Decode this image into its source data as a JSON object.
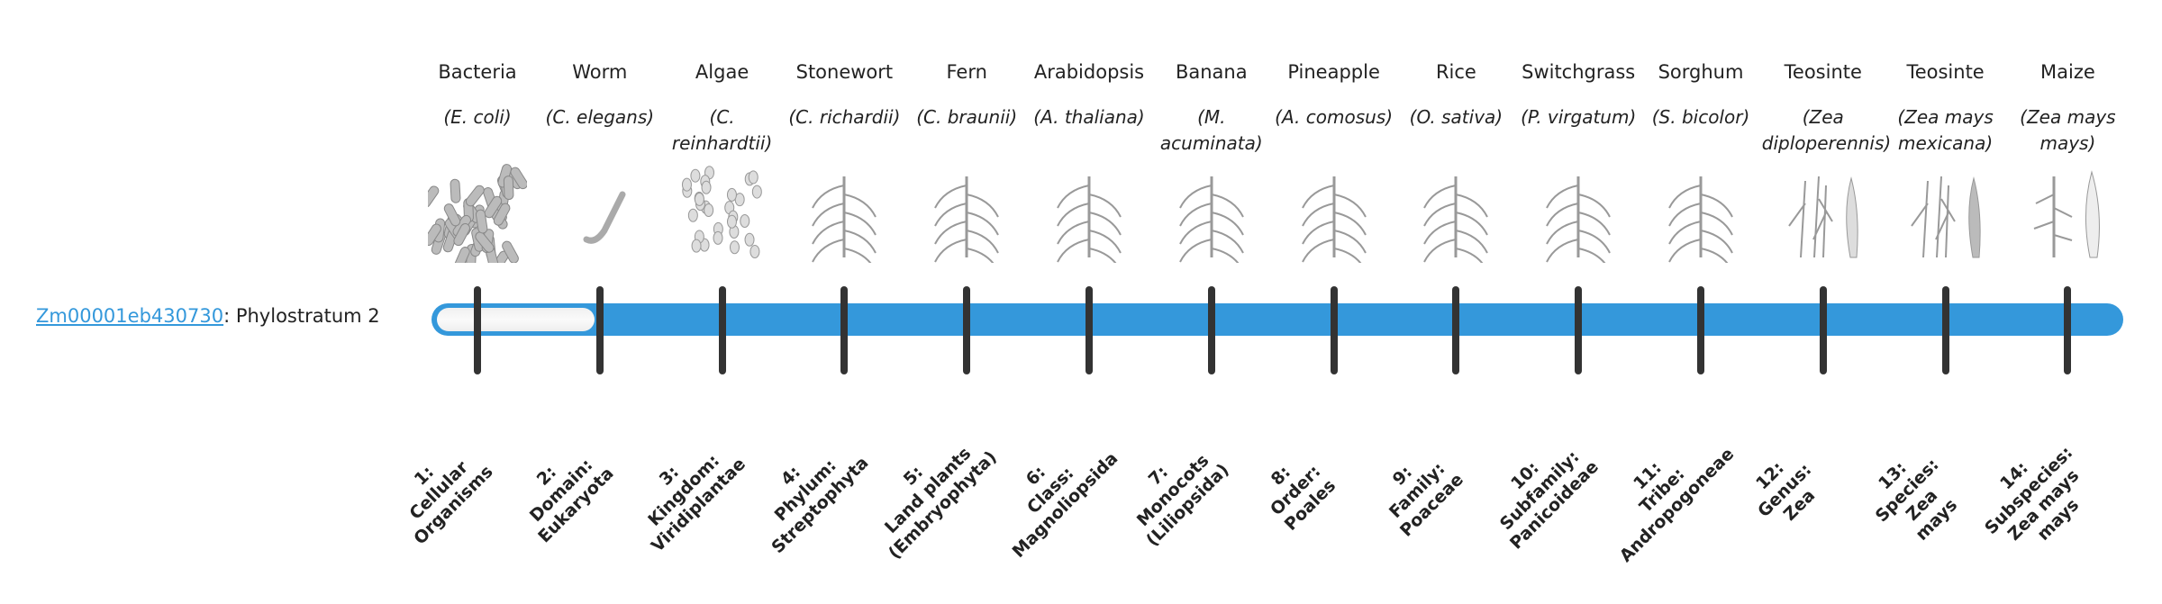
{
  "gene": {
    "id": "Zm00001eb430730",
    "separator": ": ",
    "phylostratum_text": "Phylostratum 2",
    "phylostratum": 2,
    "total_strata": 14
  },
  "colors": {
    "bar": "#3498db",
    "tick": "#333333",
    "link": "#3498db"
  },
  "organisms": [
    {
      "common": "Bacteria",
      "sci": "(E. coli)",
      "image": "bacteria-illustration",
      "rank_num": "1:",
      "rank": [
        "Cellular",
        "Organisms"
      ]
    },
    {
      "common": "Worm",
      "sci": "(C. elegans)",
      "image": "worm-illustration",
      "rank_num": "2:",
      "rank": [
        "Domain:",
        "Eukaryota"
      ]
    },
    {
      "common": "Algae",
      "sci": "(C. reinhardtii)",
      "image": "algae-illustration",
      "rank_num": "3:",
      "rank": [
        "Kingdom:",
        "Viridiplantae"
      ]
    },
    {
      "common": "Stonewort",
      "sci": "(C. richardii)",
      "image": "stonewort-illustration",
      "rank_num": "4:",
      "rank": [
        "Phylum:",
        "Streptophyta"
      ]
    },
    {
      "common": "Fern",
      "sci": "(C. braunii)",
      "image": "fern-illustration",
      "rank_num": "5:",
      "rank": [
        "Land plants",
        "(Embryophyta)"
      ]
    },
    {
      "common": "Arabidopsis",
      "sci": "(A. thaliana)",
      "image": "arabidopsis-illustration",
      "rank_num": "6:",
      "rank": [
        "Class:",
        "Magnoliopsida"
      ]
    },
    {
      "common": "Banana",
      "sci": "(M. acuminata)",
      "image": "banana-illustration",
      "rank_num": "7:",
      "rank": [
        "Monocots",
        "(Liliopsida)"
      ]
    },
    {
      "common": "Pineapple",
      "sci": "(A. comosus)",
      "image": "pineapple-illustration",
      "rank_num": "8:",
      "rank": [
        "Order:",
        "Poales"
      ]
    },
    {
      "common": "Rice",
      "sci": "(O. sativa)",
      "image": "rice-illustration",
      "rank_num": "9:",
      "rank": [
        "Family:",
        "Poaceae"
      ]
    },
    {
      "common": "Switchgrass",
      "sci": "(P. virgatum)",
      "image": "switchgrass-illustration",
      "rank_num": "10:",
      "rank": [
        "Subfamily:",
        "Panicoideae"
      ]
    },
    {
      "common": "Sorghum",
      "sci": "(S. bicolor)",
      "image": "sorghum-illustration",
      "rank_num": "11:",
      "rank": [
        "Tribe:",
        "Andropogoneae"
      ]
    },
    {
      "common": "Teosinte",
      "sci": "(Zea diploperennis)",
      "image": "teosinte-illustration",
      "rank_num": "12:",
      "rank": [
        "Genus:",
        "Zea"
      ]
    },
    {
      "common": "Teosinte",
      "sci": "(Zea mays mexicana)",
      "image": "teosinte-illustration",
      "rank_num": "13:",
      "rank": [
        "Species:",
        "Zea",
        "mays"
      ]
    },
    {
      "common": "Maize",
      "sci": "(Zea mays mays)",
      "image": "maize-illustration",
      "rank_num": "14:",
      "rank": [
        "Subspecies:",
        "Zea mays",
        "mays"
      ]
    }
  ]
}
